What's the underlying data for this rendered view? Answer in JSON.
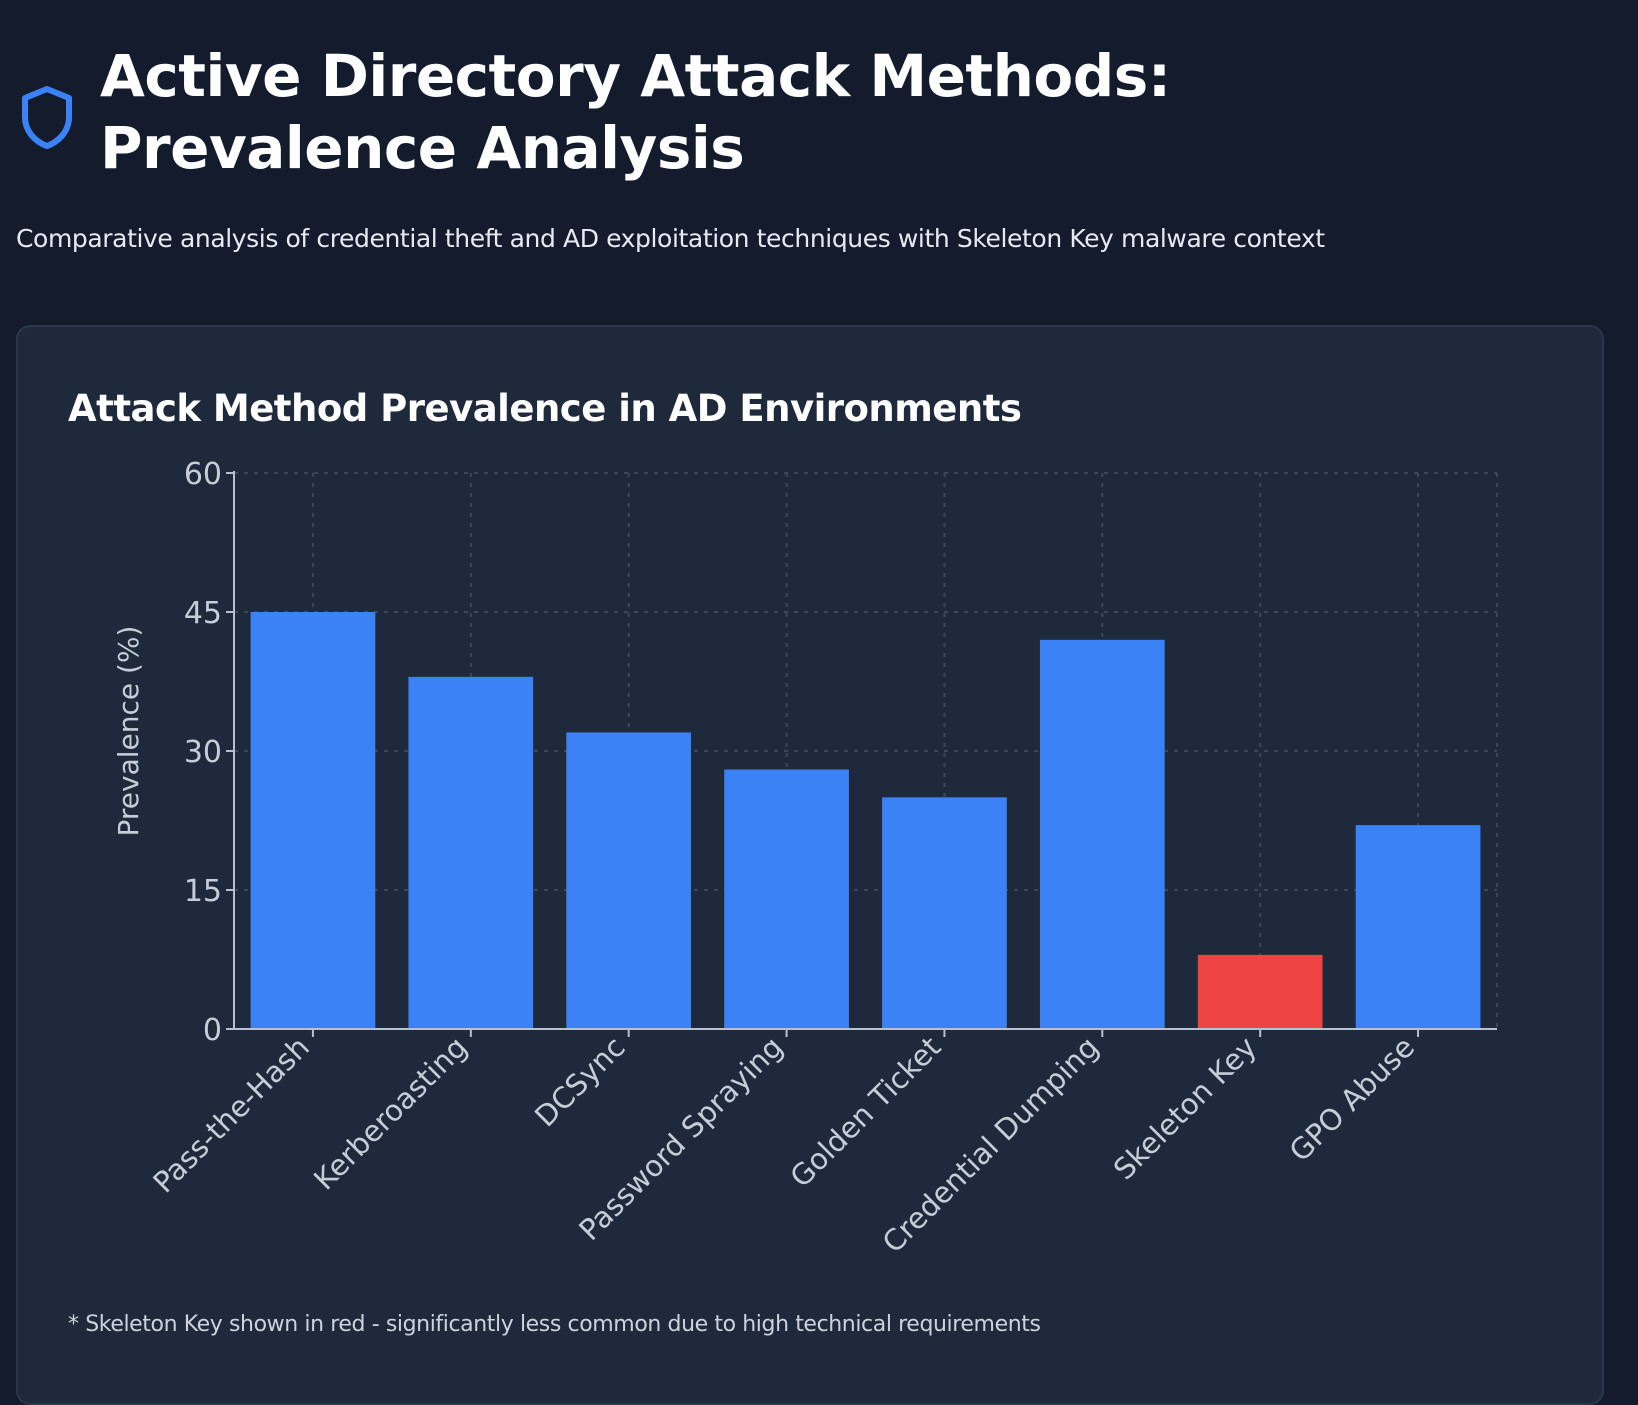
{
  "header": {
    "title": "Active Directory Attack Methods: Prevalence Analysis",
    "subtitle": "Comparative analysis of credential theft and AD exploitation techniques with Skeleton Key malware context",
    "icon": "shield-icon"
  },
  "colors": {
    "page_background": "#131b2c",
    "card_background": "#1e293b",
    "bar_default": "#3b82f6",
    "bar_highlight": "#ef4444",
    "icon_accent": "#3b82f6"
  },
  "chart_data": {
    "type": "bar",
    "title": "Attack Method Prevalence in AD Environments",
    "xlabel": "",
    "ylabel": "Prevalence (%)",
    "ylim": [
      0,
      60
    ],
    "yticks": [
      0,
      15,
      30,
      45,
      60
    ],
    "grid": true,
    "categories": [
      "Pass-the-Hash",
      "Kerberoasting",
      "DCSync",
      "Password Spraying",
      "Golden Ticket",
      "Credential Dumping",
      "Skeleton Key",
      "GPO Abuse"
    ],
    "values": [
      45,
      38,
      32,
      28,
      25,
      42,
      8,
      22
    ],
    "highlight_category": "Skeleton Key",
    "footnote": "* Skeleton Key shown in red - significantly less common due to high technical requirements"
  }
}
